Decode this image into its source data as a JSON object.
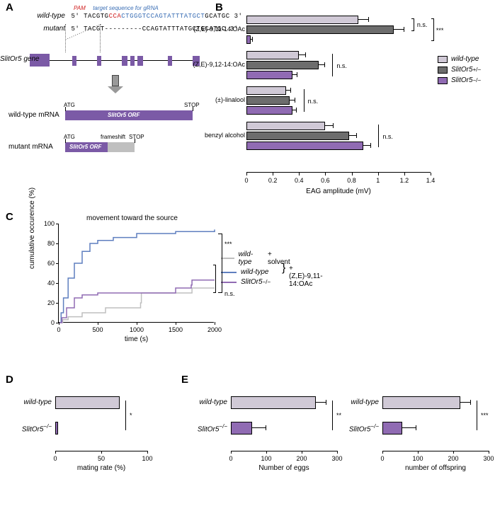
{
  "colors": {
    "wild_type": "#d0c9d6",
    "het": "#6d6d6d",
    "mut": "#906bb3",
    "exon": "#7b5aa6",
    "frameshift": "#bfbfbf",
    "line_wt_solvent": "#bfbfbf",
    "line_wt_pher": "#5f7fbf",
    "line_mut": "#906bb3"
  },
  "panelA": {
    "label": "A",
    "pam_label": "PAM",
    "target_label": "target sequence for gRNA",
    "wt_label": "wild-type",
    "mut_label": "mutant",
    "seq_wt_pre": "5' TACGTG",
    "seq_wt_pam": "CCA",
    "seq_wt_target": "CTGGGTCCAGTATTTATGCT",
    "seq_wt_post": "GCATGC 3'",
    "seq_mut_pre": "5' TACGT-",
    "seq_mut_dashes": "--------",
    "seq_mut_rest": "CCAGTATTTATGCTGCATGC 3'",
    "gene_name": "SlitOr5 gene",
    "exons": [
      {
        "x": 0,
        "w": 28,
        "tall": true
      },
      {
        "x": 60,
        "w": 6
      },
      {
        "x": 95,
        "w": 6
      },
      {
        "x": 130,
        "w": 8
      },
      {
        "x": 142,
        "w": 6
      },
      {
        "x": 152,
        "w": 8
      },
      {
        "x": 195,
        "w": 6
      },
      {
        "x": 230,
        "w": 10
      }
    ],
    "wt_mrna_label": "wild-type mRNA",
    "mut_mrna_label": "mutant mRNA",
    "atg": "ATG",
    "stop": "STOP",
    "orf_text": "SlitOr5 ORF",
    "frameshift": "frameshift"
  },
  "panelB": {
    "label": "B",
    "xmax": 1.4,
    "xtick_step": 0.2,
    "xaxis_title": "EAG amplitude (mV)",
    "groups": [
      {
        "name": "(Z,E)-9,11-14:OAc",
        "wt": 0.85,
        "wt_err": 0.08,
        "het": 1.12,
        "het_err": 0.08,
        "mut": 0.03,
        "mut_err": 0.02,
        "sig_wt_het": "n.s.",
        "sig_overall": "***"
      },
      {
        "name": "(Z,E)-9,12-14:OAc",
        "wt": 0.4,
        "wt_err": 0.05,
        "het": 0.55,
        "het_err": 0.05,
        "mut": 0.35,
        "mut_err": 0.04,
        "sig_overall": "n.s."
      },
      {
        "name": "(±)-linalool",
        "wt": 0.3,
        "wt_err": 0.04,
        "het": 0.33,
        "het_err": 0.04,
        "mut": 0.35,
        "mut_err": 0.03,
        "sig_overall": "n.s."
      },
      {
        "name": "benzyl alcohol",
        "wt": 0.6,
        "wt_err": 0.06,
        "het": 0.78,
        "het_err": 0.06,
        "mut": 0.89,
        "mut_err": 0.06,
        "sig_overall": "n.s."
      }
    ],
    "legend": [
      {
        "label": "wild-type",
        "key": "wild_type",
        "italic": true
      },
      {
        "label": "SlitOr5",
        "sup": "+/−",
        "key": "het",
        "italic": true
      },
      {
        "label": "SlitOr5",
        "sup": "−/−",
        "key": "mut",
        "italic": true
      }
    ]
  },
  "panelC": {
    "label": "C",
    "title": "movement toward the source",
    "ylabel": "cumulative occurence (%)",
    "xlabel": "time (s)",
    "xmax": 2000,
    "ymax": 100,
    "xtick_step": 500,
    "ytick_step": 20,
    "series": [
      {
        "color_key": "line_wt_solvent",
        "points": [
          [
            0,
            0
          ],
          [
            50,
            3
          ],
          [
            120,
            6
          ],
          [
            300,
            10
          ],
          [
            600,
            15
          ],
          [
            1050,
            20
          ],
          [
            1060,
            30
          ],
          [
            1700,
            30
          ],
          [
            1710,
            35
          ],
          [
            2000,
            35
          ]
        ]
      },
      {
        "color_key": "line_wt_pher",
        "points": [
          [
            0,
            0
          ],
          [
            30,
            10
          ],
          [
            60,
            25
          ],
          [
            120,
            45
          ],
          [
            200,
            60
          ],
          [
            300,
            72
          ],
          [
            400,
            80
          ],
          [
            500,
            83
          ],
          [
            700,
            86
          ],
          [
            1000,
            90
          ],
          [
            1500,
            92
          ],
          [
            2000,
            94
          ]
        ]
      },
      {
        "color_key": "line_mut",
        "points": [
          [
            0,
            0
          ],
          [
            40,
            5
          ],
          [
            100,
            15
          ],
          [
            200,
            25
          ],
          [
            300,
            28
          ],
          [
            500,
            30
          ],
          [
            1200,
            30
          ],
          [
            1500,
            35
          ],
          [
            1700,
            38
          ],
          [
            1710,
            43
          ],
          [
            2000,
            43
          ]
        ]
      }
    ],
    "legend": [
      {
        "color_key": "line_wt_solvent",
        "label": "wild-type",
        "suffix": "+ solvent"
      },
      {
        "color_key": "line_wt_pher",
        "label": "wild-type",
        "suffix": ""
      },
      {
        "color_key": "line_mut",
        "label": "SlitOr5",
        "sup": "−/−",
        "suffix": "+ (Z,E)-9,11-14:OAc"
      }
    ],
    "sig_top": "***",
    "sig_bottom": "n.s."
  },
  "panelD": {
    "label": "D",
    "xmax": 100,
    "xticks": [
      0,
      50,
      100
    ],
    "xtitle": "mating rate (%)",
    "wt": 70,
    "wt_err": 0,
    "mut": 3,
    "mut_err": 0,
    "sig": "*"
  },
  "panelE": {
    "label": "E",
    "plots": [
      {
        "xmax": 300,
        "xticks": [
          0,
          100,
          200,
          300
        ],
        "xtitle": "Number of eggs",
        "wt": 240,
        "wt_err": 30,
        "mut": 60,
        "mut_err": 40,
        "sig": "**"
      },
      {
        "xmax": 300,
        "xticks": [
          0,
          100,
          200,
          300
        ],
        "xtitle": "number of offspring",
        "wt": 220,
        "wt_err": 30,
        "mut": 55,
        "mut_err": 40,
        "sig": "***"
      }
    ]
  },
  "labels": {
    "wild_type": "wild-type",
    "slitor5": "SlitOr5",
    "minus": "−/−"
  }
}
